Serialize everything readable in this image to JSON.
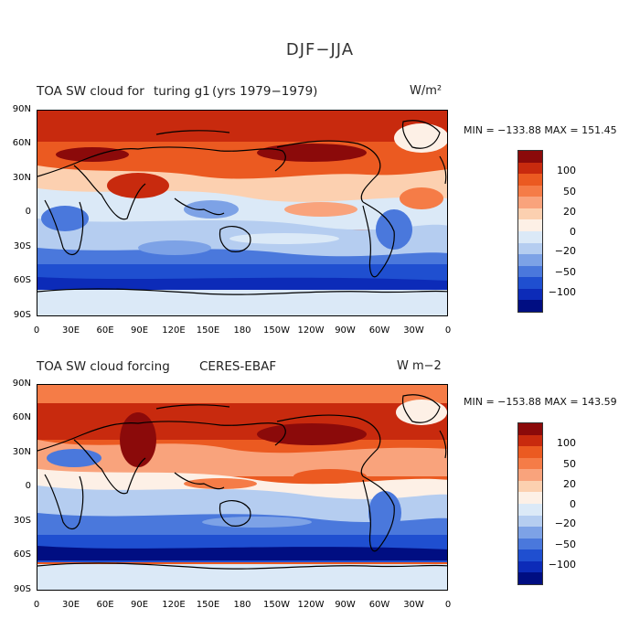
{
  "main_title": "DJF−JJA",
  "panels": [
    {
      "title_left": "TOA SW cloud for",
      "title_case": "turing g1",
      "title_years": "(yrs 1979−1979)",
      "units": "W/m²",
      "min_max": "MIN = −133.88 MAX = 151.45"
    },
    {
      "title_left": "TOA SW cloud forcing",
      "title_case": "CERES-EBAF",
      "title_years": "",
      "units": "W m−2",
      "min_max": "MIN = −153.88 MAX = 143.59"
    }
  ],
  "lat_labels": [
    "90N",
    "60N",
    "30N",
    "0",
    "30S",
    "60S",
    "90S"
  ],
  "lon_labels": [
    "0",
    "30E",
    "60E",
    "90E",
    "120E",
    "150E",
    "180",
    "150W",
    "120W",
    "90W",
    "60W",
    "30W",
    "0"
  ],
  "colorbar_labels": [
    "100",
    "50",
    "20",
    "0",
    "−20",
    "−50",
    "−100"
  ],
  "colorbar_colors": [
    "#8b0a0a",
    "#c82a0e",
    "#eb5a21",
    "#f57c47",
    "#f9a37c",
    "#fcd0b0",
    "#fdf0e6",
    "#dbe9f7",
    "#b5cdf0",
    "#7da2e6",
    "#4a78dc",
    "#1f4fd0",
    "#0c2bb8",
    "#000e82"
  ]
}
